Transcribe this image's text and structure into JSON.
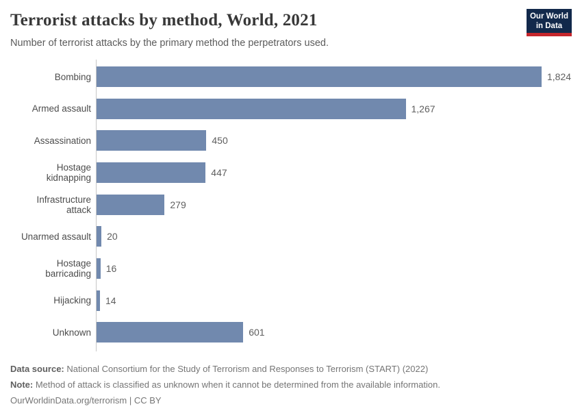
{
  "header": {
    "title": "Terrorist attacks by method, World, 2021",
    "subtitle": "Number of terrorist attacks by the primary method the perpetrators used.",
    "logo": {
      "line1": "Our World",
      "line2": "in Data"
    }
  },
  "chart_data": {
    "type": "bar",
    "orientation": "horizontal",
    "title": "Terrorist attacks by method, World, 2021",
    "categories": [
      "Bombing",
      "Armed assault",
      "Assassination",
      "Hostage kidnapping",
      "Infrastructure attack",
      "Unarmed assault",
      "Hostage barricading",
      "Hijacking",
      "Unknown"
    ],
    "values": [
      1824,
      1267,
      450,
      447,
      279,
      20,
      16,
      14,
      601
    ],
    "value_labels": [
      "1,824",
      "1,267",
      "450",
      "447",
      "279",
      "20",
      "16",
      "14",
      "601"
    ],
    "xlabel": "",
    "ylabel": "",
    "xlim": [
      0,
      1824
    ],
    "grid": false,
    "legend": false,
    "bar_color": "#7189ae"
  },
  "footer": {
    "source_label": "Data source:",
    "source_text": " National Consortium for the Study of Terrorism and Responses to Terrorism (START) (2022)",
    "note_label": "Note:",
    "note_text": " Method of attack is classified as unknown when it cannot be determined from the available information.",
    "url": "OurWorldinData.org/terrorism",
    "separator": " | ",
    "license": "CC BY"
  },
  "colors": {
    "bar": "#7189ae",
    "axis_line": "#c7c7c7",
    "title": "#383838",
    "logo_bg": "#12294b",
    "logo_stripe": "#c5262c"
  }
}
